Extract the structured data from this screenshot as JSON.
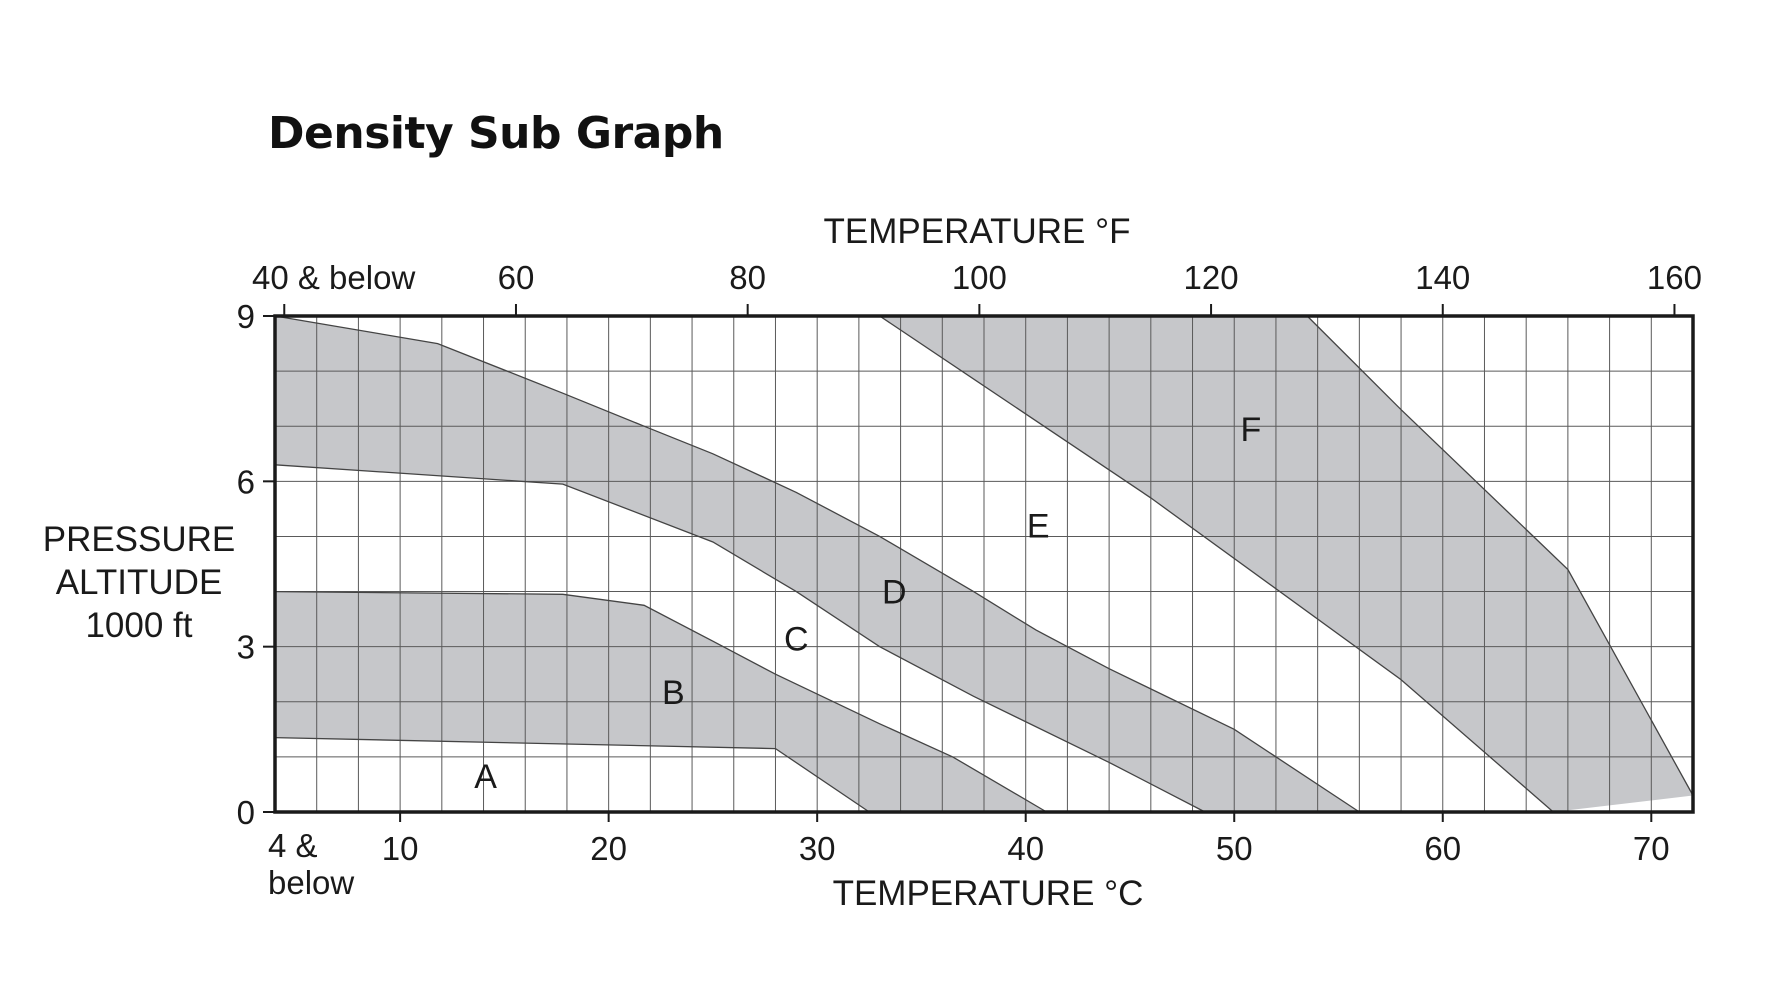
{
  "title": "Density Sub Graph",
  "chart_data": {
    "type": "area",
    "title": "Density Sub Graph",
    "x_top_label": "TEMPERATURE °F",
    "x_bottom_label": "TEMPERATURE  °C",
    "y_label_lines": [
      "PRESSURE",
      "ALTITUDE",
      "1000 ft"
    ],
    "xlim": [
      4,
      72
    ],
    "ylim": [
      0,
      9
    ],
    "y_ticks": [
      "0",
      "3",
      "6",
      "9"
    ],
    "x_bottom_ticks": [
      {
        "value": 10,
        "label": "10"
      },
      {
        "value": 20,
        "label": "20"
      },
      {
        "value": 30,
        "label": "30"
      },
      {
        "value": 40,
        "label": "40"
      },
      {
        "value": 50,
        "label": "50"
      },
      {
        "value": 60,
        "label": "60"
      },
      {
        "value": 70,
        "label": "70"
      }
    ],
    "x_bottom_first_label": [
      "4 &",
      "below"
    ],
    "x_top_ticks": [
      {
        "value": 40,
        "label": "40 & below"
      },
      {
        "value": 60,
        "label": "60"
      },
      {
        "value": 80,
        "label": "80"
      },
      {
        "value": 100,
        "label": "100"
      },
      {
        "value": 120,
        "label": "120"
      },
      {
        "value": 140,
        "label": "140"
      },
      {
        "value": 160,
        "label": "160"
      }
    ],
    "grid": true,
    "grid_x_step_c": 2,
    "grid_y_step": 1,
    "shading_color": "#c6c7ca",
    "bands": [
      {
        "upper": [
          [
            4,
            9
          ],
          [
            11.8,
            8.5
          ],
          [
            17.8,
            7.6
          ],
          [
            21.7,
            7.0
          ],
          [
            25,
            6.5
          ],
          [
            29,
            5.8
          ],
          [
            33,
            5.0
          ],
          [
            37.5,
            4.0
          ],
          [
            40.5,
            3.3
          ],
          [
            44,
            2.6
          ],
          [
            50,
            1.5
          ],
          [
            56,
            0
          ]
        ],
        "lower": [
          [
            4,
            6.3
          ],
          [
            17.8,
            5.95
          ],
          [
            25,
            4.9
          ],
          [
            29,
            4.0
          ],
          [
            33,
            3.0
          ],
          [
            37.5,
            2.1
          ],
          [
            44,
            0.9
          ],
          [
            48.6,
            0
          ]
        ]
      },
      {
        "upper": [
          [
            4,
            4.0
          ],
          [
            17.8,
            3.95
          ],
          [
            21.7,
            3.75
          ],
          [
            25,
            3.1
          ],
          [
            28,
            2.5
          ],
          [
            33,
            1.6
          ],
          [
            36.5,
            1.0
          ],
          [
            41,
            0
          ]
        ],
        "lower": [
          [
            4,
            1.35
          ],
          [
            28,
            1.15
          ],
          [
            32.5,
            0
          ]
        ]
      },
      {
        "upper": [
          [
            53.5,
            9
          ],
          [
            58,
            7.3
          ],
          [
            66,
            4.4
          ],
          [
            72,
            0.3
          ]
        ],
        "lower": [
          [
            33,
            9
          ],
          [
            46,
            5.7
          ],
          [
            58,
            2.4
          ],
          [
            65.3,
            0
          ]
        ]
      }
    ],
    "region_labels": [
      {
        "text": "A",
        "x": 14.1,
        "y": 0.65
      },
      {
        "text": "B",
        "x": 23.1,
        "y": 2.18
      },
      {
        "text": "C",
        "x": 29.0,
        "y": 3.15
      },
      {
        "text": "D",
        "x": 33.7,
        "y": 4.0
      },
      {
        "text": "E",
        "x": 40.6,
        "y": 5.2
      },
      {
        "text": "F",
        "x": 50.8,
        "y": 6.95
      }
    ]
  }
}
